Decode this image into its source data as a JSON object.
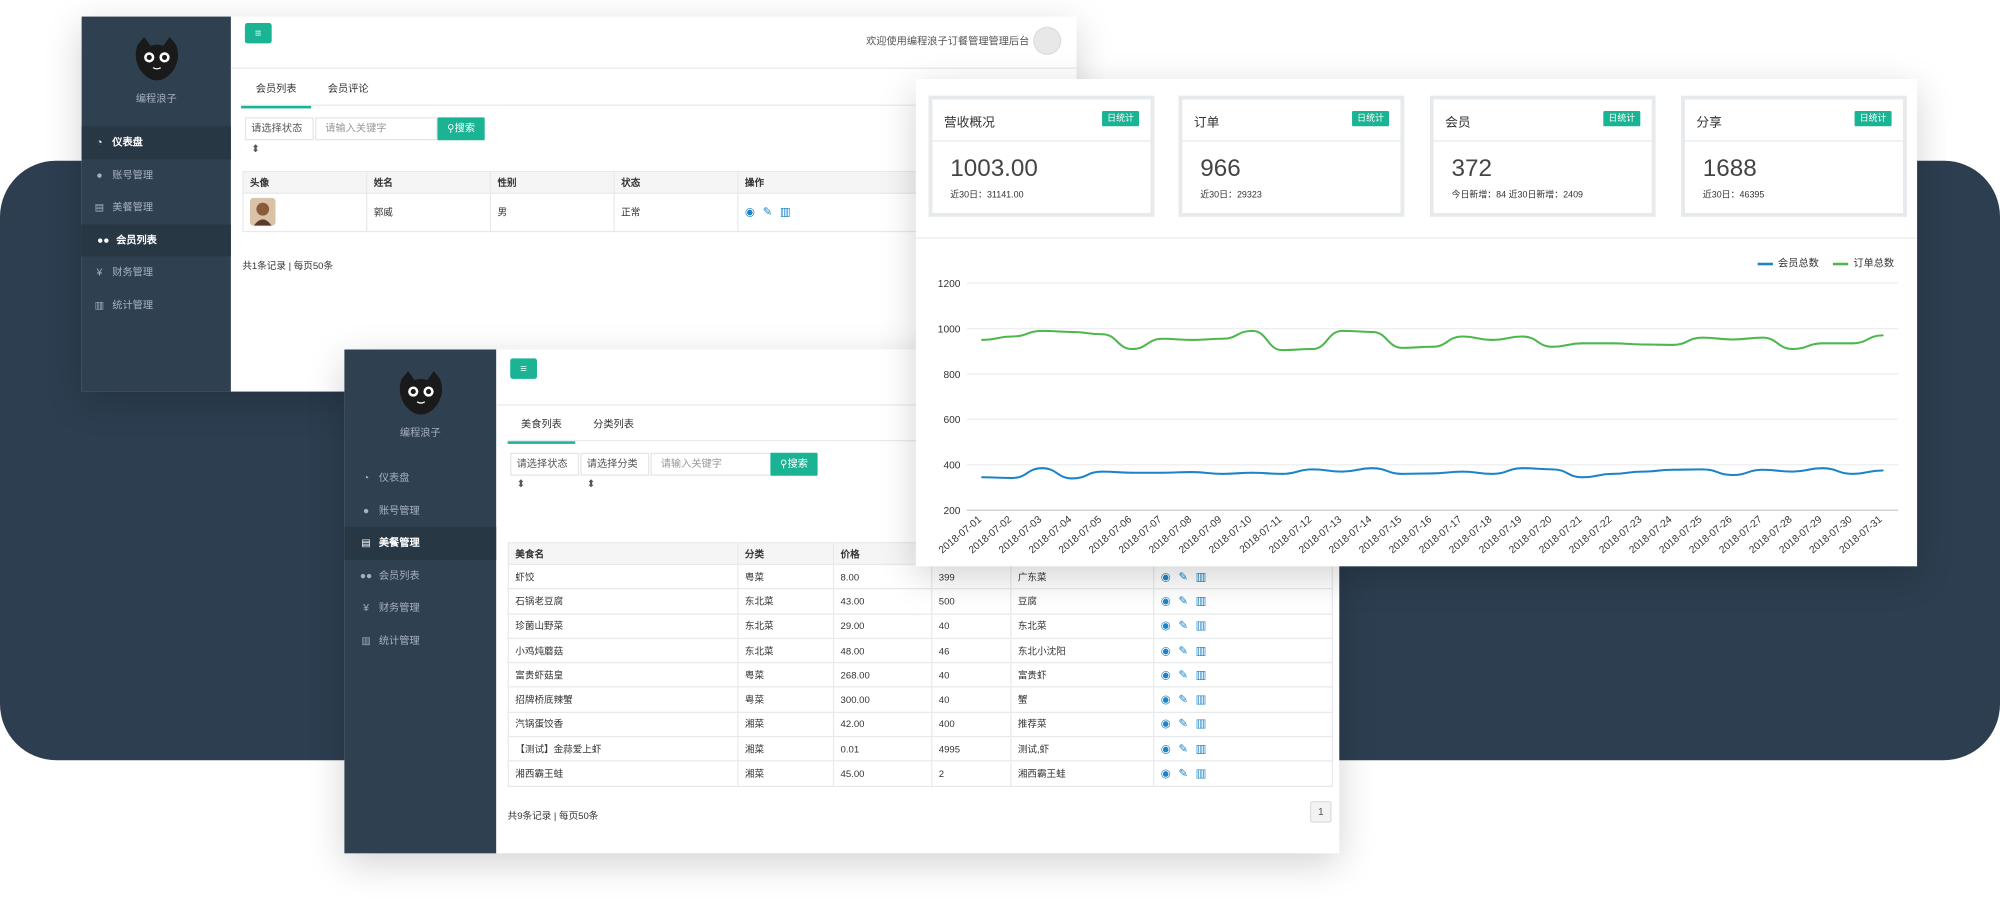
{
  "brand": {
    "name": "编程浪子"
  },
  "nav": [
    {
      "label": "仪表盘",
      "icon": "dashboard-icon",
      "glyph": "◔"
    },
    {
      "label": "账号管理",
      "icon": "user-icon",
      "glyph": "●"
    },
    {
      "label": "美餐管理",
      "icon": "book-icon",
      "glyph": "▤"
    },
    {
      "label": "会员列表",
      "icon": "users-icon",
      "glyph": "●●"
    },
    {
      "label": "财务管理",
      "icon": "yen-icon",
      "glyph": "¥"
    },
    {
      "label": "统计管理",
      "icon": "bar-chart-icon",
      "glyph": "▥"
    }
  ],
  "member_window": {
    "header_welcome": "欢迎使用编程浪子订餐管理管理后台",
    "tabs": [
      "会员列表",
      "会员评论"
    ],
    "status_select": "请选择状态",
    "search_placeholder": "请输入关键字",
    "search_label": "搜索",
    "columns": [
      "头像",
      "姓名",
      "性别",
      "状态",
      "操作"
    ],
    "rows": [
      {
        "name": "郭威",
        "gender": "男",
        "status": "正常"
      }
    ],
    "footer": "共1条记录 | 每页50条"
  },
  "food_window": {
    "tabs": [
      "美食列表",
      "分类列表"
    ],
    "status_select": "请选择状态",
    "category_select": "请选择分类",
    "search_placeholder": "请输入关键字",
    "search_label": "搜索",
    "columns": [
      "美食名",
      "分类",
      "价格",
      "",
      "",
      ""
    ],
    "rows": [
      [
        "虾饺",
        "粤菜",
        "8.00",
        "399",
        "广东菜"
      ],
      [
        "石锅老豆腐",
        "东北菜",
        "43.00",
        "500",
        "豆腐"
      ],
      [
        "珍菌山野菜",
        "东北菜",
        "29.00",
        "40",
        "东北菜"
      ],
      [
        "小鸡炖蘑菇",
        "东北菜",
        "48.00",
        "46",
        "东北小沈阳"
      ],
      [
        "富贵虾菇皇",
        "粤菜",
        "268.00",
        "40",
        "富贵虾"
      ],
      [
        "招牌桥底辣蟹",
        "粤菜",
        "300.00",
        "40",
        "蟹"
      ],
      [
        "汽锅蛋饺香",
        "湘菜",
        "42.00",
        "400",
        "推荐菜"
      ],
      [
        "【测试】金蒜爱上虾",
        "湘菜",
        "0.01",
        "4995",
        "测试,虾"
      ],
      [
        "湘西霸王蛙",
        "湘菜",
        "45.00",
        "2",
        "湘西霸王蛙"
      ]
    ],
    "footer": "共9条记录 | 每页50条",
    "page": "1"
  },
  "dashboard": {
    "cards": [
      {
        "title": "营收概况",
        "badge": "日统计",
        "value": "1003.00",
        "sub": "近30日：31141.00"
      },
      {
        "title": "订单",
        "badge": "日统计",
        "value": "966",
        "sub": "近30日：29323"
      },
      {
        "title": "会员",
        "badge": "日统计",
        "value": "372",
        "sub": "今日新增：84 近30日新增：2409"
      },
      {
        "title": "分享",
        "badge": "日统计",
        "value": "1688",
        "sub": "近30日：46395"
      }
    ]
  },
  "chart_data": {
    "type": "line",
    "x": [
      "2018-07-01",
      "2018-07-02",
      "2018-07-03",
      "2018-07-04",
      "2018-07-05",
      "2018-07-06",
      "2018-07-07",
      "2018-07-08",
      "2018-07-09",
      "2018-07-10",
      "2018-07-11",
      "2018-07-12",
      "2018-07-13",
      "2018-07-14",
      "2018-07-15",
      "2018-07-16",
      "2018-07-17",
      "2018-07-18",
      "2018-07-19",
      "2018-07-20",
      "2018-07-21",
      "2018-07-22",
      "2018-07-23",
      "2018-07-24",
      "2018-07-25",
      "2018-07-26",
      "2018-07-27",
      "2018-07-28",
      "2018-07-29",
      "2018-07-30",
      "2018-07-31"
    ],
    "series": [
      {
        "name": "会员总数",
        "color": "#1c84c6",
        "values": [
          345,
          342,
          385,
          340,
          370,
          365,
          365,
          368,
          360,
          365,
          360,
          380,
          370,
          385,
          360,
          362,
          370,
          360,
          385,
          380,
          345,
          360,
          370,
          378,
          380,
          355,
          378,
          370,
          385,
          360,
          375
        ]
      },
      {
        "name": "订单总数",
        "color": "#4cb84c",
        "values": [
          950,
          965,
          990,
          985,
          975,
          910,
          955,
          950,
          955,
          990,
          905,
          910,
          990,
          985,
          915,
          920,
          965,
          950,
          965,
          920,
          935,
          935,
          930,
          928,
          960,
          952,
          960,
          910,
          935,
          935,
          970
        ]
      }
    ],
    "yticks": [
      200,
      400,
      600,
      800,
      1000,
      1200
    ],
    "ylim": [
      200,
      1200
    ],
    "grid": true,
    "legend": "top-right"
  }
}
